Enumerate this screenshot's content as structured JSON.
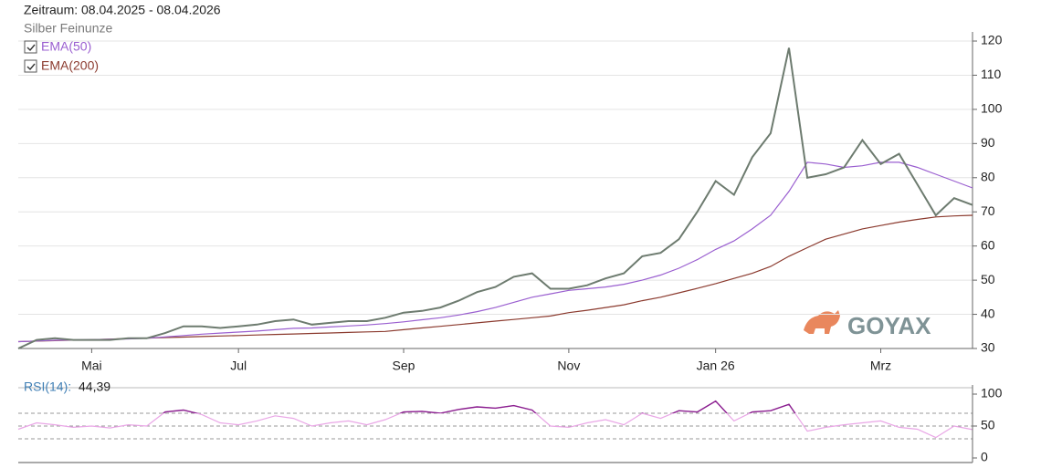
{
  "chart_data": [
    {
      "type": "line",
      "title": "Zeitraum: 08.04.2025 - 08.04.2026",
      "watermark": "GOYAX",
      "categories": [
        null,
        null,
        null,
        null,
        "Mai",
        null,
        null,
        null,
        null,
        null,
        null,
        null,
        "Jul",
        null,
        null,
        null,
        null,
        null,
        null,
        null,
        null,
        "Sep",
        null,
        null,
        null,
        null,
        null,
        null,
        null,
        null,
        "Nov",
        null,
        null,
        null,
        null,
        null,
        null,
        null,
        "Jan 26",
        null,
        null,
        null,
        null,
        null,
        null,
        null,
        null,
        "Mrz",
        null,
        null,
        null,
        null,
        null
      ],
      "series": [
        {
          "name": "Silber Feinunze",
          "color": "#6d7b6f",
          "values": [
            30,
            32.5,
            33,
            32.5,
            32.5,
            32.5,
            33,
            33,
            34.5,
            36.5,
            36.5,
            36,
            36.5,
            37,
            38,
            38.5,
            37,
            37.5,
            38,
            38,
            39,
            40.5,
            41,
            42,
            44,
            46.5,
            48,
            51,
            52,
            47.5,
            47.5,
            48.5,
            50.5,
            52,
            57,
            58,
            62,
            70,
            79,
            75,
            86,
            93,
            118,
            80,
            81,
            83,
            91,
            84,
            87,
            78,
            69,
            74,
            72
          ]
        },
        {
          "name": "EMA(50)",
          "color": "#9a5fd0",
          "checkbox": true,
          "values": [
            32,
            32.2,
            32.4,
            32.5,
            32.6,
            32.7,
            32.8,
            33,
            33.4,
            33.8,
            34.2,
            34.5,
            34.8,
            35.1,
            35.5,
            35.9,
            36,
            36.3,
            36.6,
            36.9,
            37.3,
            37.8,
            38.4,
            39,
            39.8,
            40.8,
            42,
            43.5,
            45,
            46,
            47,
            47.5,
            48,
            48.8,
            50,
            51.5,
            53.5,
            56,
            59,
            61.5,
            65,
            69,
            76,
            84.5,
            84,
            83,
            83.5,
            84.5,
            84.5,
            83,
            81,
            79,
            77
          ]
        },
        {
          "name": "EMA(200)",
          "color": "#8b3a2e",
          "checkbox": true,
          "values": [
            32,
            32.15,
            32.3,
            32.45,
            32.6,
            32.75,
            32.9,
            33.05,
            33.2,
            33.35,
            33.5,
            33.65,
            33.8,
            33.95,
            34.1,
            34.25,
            34.4,
            34.55,
            34.7,
            34.85,
            35,
            35.5,
            36,
            36.5,
            37,
            37.5,
            38,
            38.5,
            39,
            39.5,
            40.5,
            41.2,
            42,
            42.8,
            44,
            45,
            46.3,
            47.6,
            49,
            50.5,
            52,
            54,
            57,
            59.5,
            62,
            63.5,
            65,
            66,
            67,
            67.8,
            68.5,
            68.8,
            69
          ]
        }
      ],
      "ylim": [
        30,
        120
      ],
      "yticks": [
        30,
        40,
        50,
        60,
        70,
        80,
        90,
        100,
        110,
        120
      ],
      "grid": true
    },
    {
      "type": "line",
      "title": "RSI(14):",
      "current_label": "44,39",
      "series": [
        {
          "name": "RSI(14)",
          "color": "#e9a6e6",
          "overbought_color": "#8a1f8f",
          "values": [
            45,
            55,
            52,
            48,
            50,
            47,
            52,
            50,
            72,
            75,
            68,
            55,
            52,
            58,
            66,
            62,
            50,
            55,
            58,
            52,
            60,
            72,
            73,
            70,
            76,
            80,
            78,
            82,
            75,
            50,
            48,
            55,
            60,
            52,
            70,
            62,
            74,
            72,
            89,
            58,
            72,
            74,
            84,
            42,
            48,
            52,
            55,
            58,
            48,
            45,
            32,
            50,
            44.39
          ]
        }
      ],
      "levels": [
        30,
        50,
        70
      ],
      "ylim": [
        0,
        100
      ],
      "yticks": [
        0,
        50,
        100
      ]
    }
  ]
}
